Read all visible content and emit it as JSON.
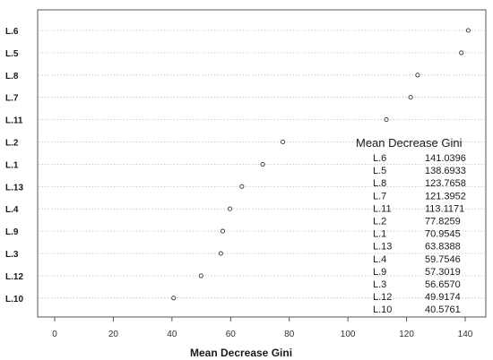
{
  "chart_data": {
    "type": "scatter",
    "title": "",
    "xlabel": "Mean Decrease Gini",
    "ylabel": "",
    "xlim": [
      -3,
      143
    ],
    "xticks": [
      0,
      20,
      40,
      60,
      80,
      100,
      120,
      140
    ],
    "grid": "horizontal dotted lines",
    "categories": [
      "L.6",
      "L.5",
      "L.8",
      "L.7",
      "L.11",
      "L.2",
      "L.1",
      "L.13",
      "L.4",
      "L.9",
      "L.3",
      "L.12",
      "L.10"
    ],
    "values": [
      141.0396,
      138.6933,
      123.7658,
      121.3952,
      113.1171,
      77.8259,
      70.9545,
      63.8388,
      59.7546,
      57.3019,
      56.657,
      49.9174,
      40.5761
    ]
  },
  "table": {
    "title": "Mean Decrease Gini",
    "rows": [
      {
        "label": "L.6",
        "value": "141.0396"
      },
      {
        "label": "L.5",
        "value": "138.6933"
      },
      {
        "label": "L.8",
        "value": "123.7658"
      },
      {
        "label": "L.7",
        "value": "121.3952"
      },
      {
        "label": "L.11",
        "value": "113.1171"
      },
      {
        "label": "L.2",
        "value": "77.8259"
      },
      {
        "label": "L.1",
        "value": "70.9545"
      },
      {
        "label": "L.13",
        "value": "63.8388"
      },
      {
        "label": "L.4",
        "value": "59.7546"
      },
      {
        "label": "L.9",
        "value": "57.3019"
      },
      {
        "label": "L.3",
        "value": "56.6570"
      },
      {
        "label": "L.12",
        "value": "49.9174"
      },
      {
        "label": "L.10",
        "value": "40.5761"
      }
    ]
  },
  "colors": {
    "frame": "#555555",
    "grid": "#bfbfbf",
    "marker": "#333333"
  }
}
